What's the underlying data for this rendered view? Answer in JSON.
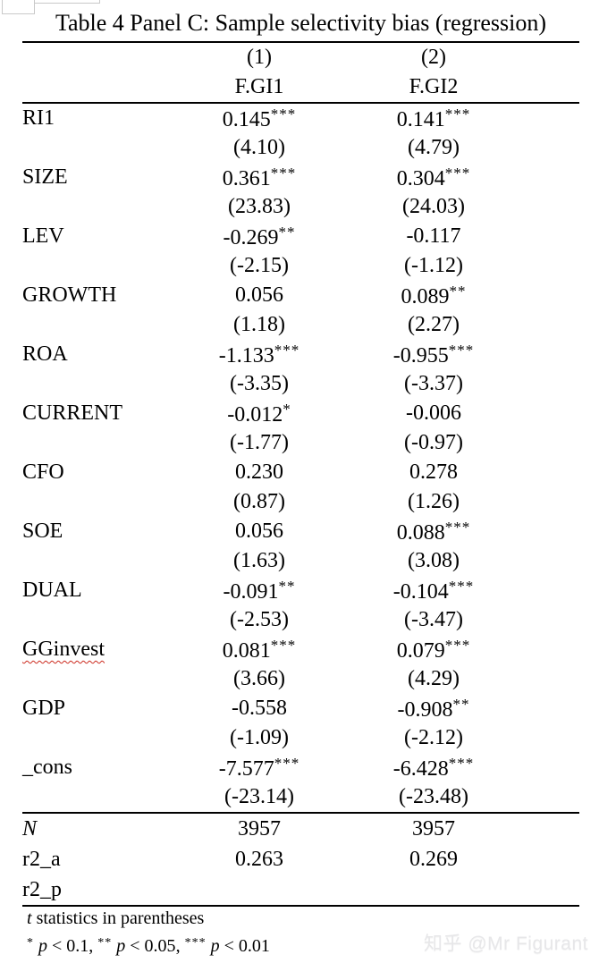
{
  "title": "Table 4 Panel C: Sample selectivity bias (regression)",
  "header": {
    "model_numbers": [
      "(1)",
      "(2)"
    ],
    "dep_vars": [
      "F.GI1",
      "F.GI2"
    ]
  },
  "rows": [
    {
      "label": "RI1",
      "cells": [
        {
          "coef": "0.145",
          "stars": "***",
          "t": "(4.10)"
        },
        {
          "coef": "0.141",
          "stars": "***",
          "t": "(4.79)"
        }
      ]
    },
    {
      "label": "SIZE",
      "cells": [
        {
          "coef": "0.361",
          "stars": "***",
          "t": "(23.83)"
        },
        {
          "coef": "0.304",
          "stars": "***",
          "t": "(24.03)"
        }
      ]
    },
    {
      "label": "LEV",
      "cells": [
        {
          "coef": "-0.269",
          "stars": "**",
          "t": "(-2.15)"
        },
        {
          "coef": "-0.117",
          "stars": "",
          "t": "(-1.12)"
        }
      ]
    },
    {
      "label": "GROWTH",
      "cells": [
        {
          "coef": "0.056",
          "stars": "",
          "t": "(1.18)"
        },
        {
          "coef": "0.089",
          "stars": "**",
          "t": "(2.27)"
        }
      ]
    },
    {
      "label": "ROA",
      "cells": [
        {
          "coef": "-1.133",
          "stars": "***",
          "t": "(-3.35)"
        },
        {
          "coef": "-0.955",
          "stars": "***",
          "t": "(-3.37)"
        }
      ]
    },
    {
      "label": "CURRENT",
      "cells": [
        {
          "coef": "-0.012",
          "stars": "*",
          "t": "(-1.77)"
        },
        {
          "coef": "-0.006",
          "stars": "",
          "t": "(-0.97)"
        }
      ]
    },
    {
      "label": "CFO",
      "cells": [
        {
          "coef": "0.230",
          "stars": "",
          "t": "(0.87)"
        },
        {
          "coef": "0.278",
          "stars": "",
          "t": "(1.26)"
        }
      ]
    },
    {
      "label": "SOE",
      "cells": [
        {
          "coef": "0.056",
          "stars": "",
          "t": "(1.63)"
        },
        {
          "coef": "0.088",
          "stars": "***",
          "t": "(3.08)"
        }
      ]
    },
    {
      "label": "DUAL",
      "cells": [
        {
          "coef": "-0.091",
          "stars": "**",
          "t": "(-2.53)"
        },
        {
          "coef": "-0.104",
          "stars": "***",
          "t": "(-3.47)"
        }
      ]
    },
    {
      "label": "GGinvest",
      "spellcheck_underline": true,
      "cells": [
        {
          "coef": "0.081",
          "stars": "***",
          "t": "(3.66)"
        },
        {
          "coef": "0.079",
          "stars": "***",
          "t": "(4.29)"
        }
      ]
    },
    {
      "label": "GDP",
      "cells": [
        {
          "coef": "-0.558",
          "stars": "",
          "t": "(-1.09)"
        },
        {
          "coef": "-0.908",
          "stars": "**",
          "t": "(-2.12)"
        }
      ]
    },
    {
      "label": "_cons",
      "cells": [
        {
          "coef": "-7.577",
          "stars": "***",
          "t": "(-23.14)"
        },
        {
          "coef": "-6.428",
          "stars": "***",
          "t": "(-23.48)"
        }
      ]
    }
  ],
  "stats": [
    {
      "label": "N",
      "italic": true,
      "values": [
        "3957",
        "3957"
      ]
    },
    {
      "label": "r2_a",
      "italic": false,
      "values": [
        "0.263",
        "0.269"
      ]
    },
    {
      "label": "r2_p",
      "italic": false,
      "values": [
        "",
        ""
      ]
    }
  ],
  "footnotes": {
    "t_note_lead": "t",
    "t_note_rest": " statistics in parentheses",
    "sig_levels": [
      {
        "stars": "*",
        "variable": "p",
        "threshold": "0.1"
      },
      {
        "stars": "**",
        "variable": "p",
        "threshold": "0.05"
      },
      {
        "stars": "***",
        "variable": "p",
        "threshold": "0.01"
      }
    ]
  },
  "watermark": "知乎 @Mr Figurant",
  "colors": {
    "text": "#000000",
    "rule": "#000000",
    "squiggle": "#cc2a1e",
    "watermark": "#e7e7e9"
  }
}
